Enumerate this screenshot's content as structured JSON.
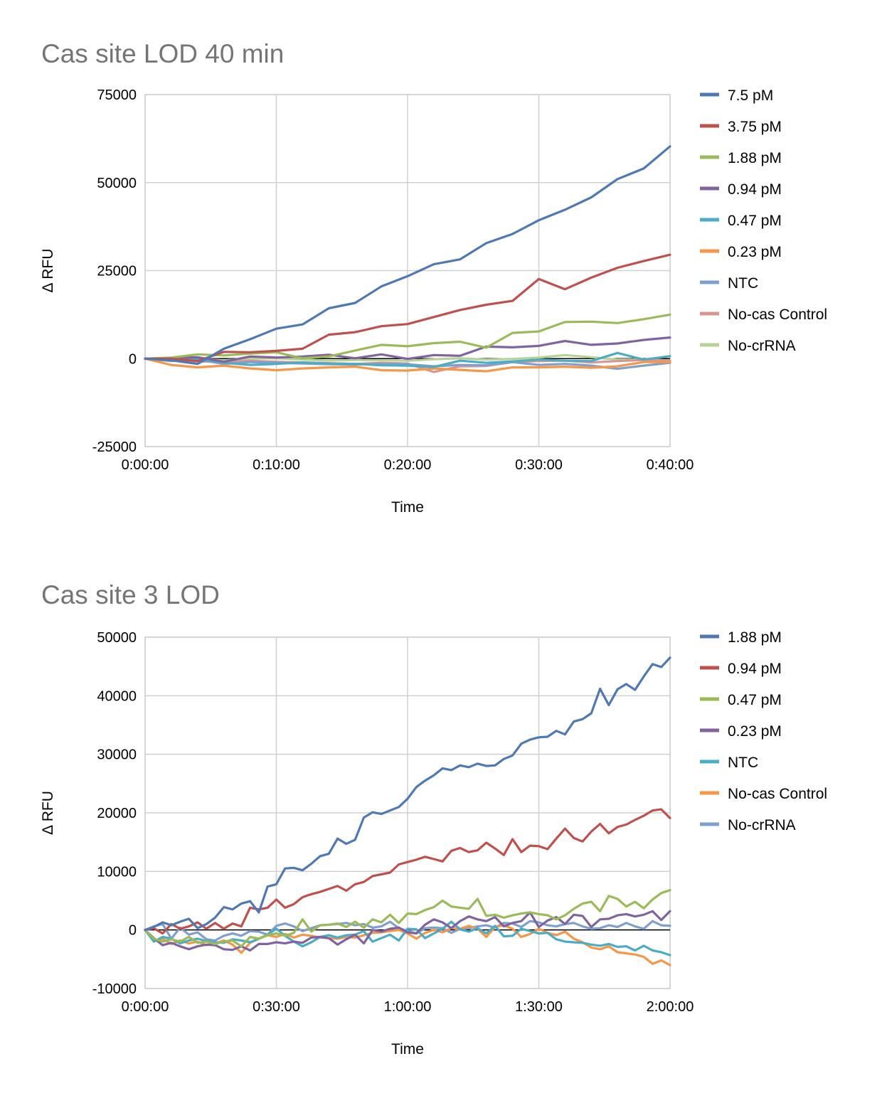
{
  "chart_data": [
    {
      "type": "line",
      "title": "Cas site  LOD 40 min",
      "xlabel": "Time",
      "ylabel": "Δ RFU",
      "x_unit": "minutes",
      "xlim": [
        0,
        40
      ],
      "ylim": [
        -25000,
        75000
      ],
      "y_ticks": [
        -25000,
        0,
        25000,
        50000,
        75000
      ],
      "x_tick_values": [
        0,
        10,
        20,
        30,
        40
      ],
      "x_tick_labels": [
        "0:00:00",
        "0:10:00",
        "0:20:00",
        "0:30:00",
        "0:40:00"
      ],
      "grid": true,
      "legend_position": "right",
      "x": [
        0,
        2,
        4,
        6,
        8,
        10,
        12,
        14,
        16,
        18,
        20,
        22,
        24,
        26,
        28,
        30,
        32,
        34,
        36,
        38,
        40
      ],
      "series": [
        {
          "name": "7.5 pM",
          "color": "#4e79b4",
          "values": [
            0,
            -500,
            -1500,
            2800,
            5500,
            8500,
            9700,
            14300,
            15800,
            20500,
            23400,
            26800,
            28200,
            32800,
            35400,
            39300,
            42300,
            45800,
            51000,
            54000,
            60300
          ]
        },
        {
          "name": "3.75 pM",
          "color": "#c0504d",
          "values": [
            0,
            0,
            -700,
            1900,
            1800,
            2200,
            2800,
            6800,
            7500,
            9200,
            9800,
            11800,
            13800,
            15300,
            16400,
            22600,
            19700,
            23000,
            25800,
            27700,
            29500
          ]
        },
        {
          "name": "1.88 pM",
          "color": "#9bbb59",
          "values": [
            0,
            300,
            1200,
            900,
            1400,
            1800,
            100,
            600,
            2300,
            3900,
            3500,
            4400,
            4800,
            3100,
            7300,
            7700,
            10400,
            10500,
            10100,
            11200,
            12500
          ]
        },
        {
          "name": "0.94 pM",
          "color": "#8064a2",
          "values": [
            0,
            200,
            400,
            -900,
            600,
            300,
            600,
            1100,
            100,
            1200,
            -100,
            1000,
            800,
            3400,
            3200,
            3600,
            5000,
            3900,
            4300,
            5300,
            6000
          ]
        },
        {
          "name": "0.47 pM",
          "color": "#4bacc6",
          "values": [
            0,
            -300,
            0,
            -1200,
            -1800,
            -1500,
            -1100,
            -1400,
            -1500,
            -1900,
            -2000,
            -2400,
            -600,
            -1200,
            -800,
            -300,
            -600,
            -700,
            1600,
            -300,
            700
          ]
        },
        {
          "name": "0.23 pM",
          "color": "#f79646",
          "values": [
            0,
            -1800,
            -2500,
            -2000,
            -2800,
            -3300,
            -2800,
            -2500,
            -2300,
            -3300,
            -3400,
            -2800,
            -3200,
            -3600,
            -2500,
            -2500,
            -2300,
            -2600,
            -2200,
            -1000,
            -1000
          ]
        },
        {
          "name": "NTC",
          "color": "#7f9fcf",
          "values": [
            0,
            -700,
            -300,
            -1500,
            -1000,
            -1200,
            -1400,
            -1600,
            -1700,
            -1500,
            -1600,
            -2200,
            -1800,
            -1900,
            -1000,
            -1800,
            -1500,
            -2000,
            -2900,
            -2000,
            -1200
          ]
        },
        {
          "name": "No-cas Control",
          "color": "#d99590",
          "values": [
            0,
            -500,
            -800,
            -1000,
            -600,
            -900,
            -1100,
            -1300,
            -1500,
            -1200,
            -1400,
            -3800,
            -2200,
            -2100,
            -1000,
            -700,
            -600,
            -1100,
            -700,
            -400,
            -600
          ]
        },
        {
          "name": "No-crRNA",
          "color": "#b8d295",
          "values": [
            0,
            0,
            -100,
            -500,
            0,
            100,
            -300,
            -600,
            -400,
            -500,
            -600,
            -200,
            100,
            -300,
            -100,
            300,
            1000,
            400,
            -300,
            -300,
            -500
          ]
        }
      ]
    },
    {
      "type": "line",
      "title": "Cas site 3 LOD",
      "xlabel": "Time",
      "ylabel": "Δ RFU",
      "x_unit": "minutes",
      "xlim": [
        0,
        120
      ],
      "ylim": [
        -10000,
        50000
      ],
      "y_ticks": [
        -10000,
        0,
        10000,
        20000,
        30000,
        40000,
        50000
      ],
      "x_tick_values": [
        0,
        30,
        60,
        90,
        120
      ],
      "x_tick_labels": [
        "0:00:00",
        "0:30:00",
        "1:00:00",
        "1:30:00",
        "2:00:00"
      ],
      "grid": true,
      "legend_position": "right",
      "x": [
        0,
        2,
        4,
        6,
        8,
        10,
        12,
        14,
        16,
        18,
        20,
        22,
        24,
        26,
        28,
        30,
        32,
        34,
        36,
        38,
        40,
        42,
        44,
        46,
        48,
        50,
        52,
        54,
        56,
        58,
        60,
        62,
        64,
        66,
        68,
        70,
        72,
        74,
        76,
        78,
        80,
        82,
        84,
        86,
        88,
        90,
        92,
        94,
        96,
        98,
        100,
        102,
        104,
        106,
        108,
        110,
        112,
        114,
        116,
        118,
        120
      ],
      "series": [
        {
          "name": "1.88 pM",
          "color": "#4e79b4",
          "values": [
            0,
            500,
            1300,
            800,
            1400,
            1900,
            300,
            1000,
            2100,
            3900,
            3500,
            4500,
            4900,
            3000,
            7400,
            7800,
            10500,
            10600,
            10200,
            11300,
            12600,
            13000,
            15600,
            14700,
            15400,
            19200,
            20100,
            19800,
            20400,
            21000,
            22400,
            24400,
            25500,
            26400,
            27600,
            27300,
            28100,
            27800,
            28400,
            28000,
            28100,
            29200,
            29800,
            31800,
            32500,
            32900,
            33000,
            34000,
            33400,
            35600,
            36000,
            37000,
            41200,
            38400,
            41100,
            42000,
            41000,
            43300,
            45400,
            44900,
            46500
          ]
        },
        {
          "name": "0.94 pM",
          "color": "#c0504d",
          "values": [
            0,
            300,
            -600,
            1000,
            200,
            600,
            1300,
            200,
            1200,
            200,
            1100,
            600,
            3800,
            3500,
            3800,
            5200,
            3800,
            4400,
            5600,
            6100,
            6500,
            7000,
            7500,
            6700,
            7800,
            8200,
            9200,
            9500,
            9800,
            11200,
            11600,
            12000,
            12500,
            12100,
            11700,
            13500,
            14000,
            13300,
            13600,
            14900,
            13900,
            12800,
            15500,
            13300,
            14400,
            14300,
            13800,
            15600,
            17300,
            15700,
            15100,
            16800,
            18100,
            16500,
            17600,
            18000,
            18800,
            19500,
            20400,
            20600,
            19100
          ]
        },
        {
          "name": "0.47 pM",
          "color": "#9bbb59",
          "values": [
            0,
            -1500,
            -2000,
            -1600,
            -2000,
            -1200,
            -2200,
            -2000,
            -2400,
            -2000,
            -1800,
            -2800,
            -1200,
            -1500,
            -900,
            -600,
            -1000,
            -500,
            1800,
            -300,
            800,
            900,
            1100,
            500,
            1400,
            400,
            1800,
            1300,
            2600,
            1200,
            2800,
            2700,
            3400,
            3900,
            5000,
            4000,
            3800,
            3600,
            5300,
            2400,
            2600,
            2100,
            2500,
            2800,
            3000,
            2700,
            2500,
            1800,
            2500,
            3600,
            4500,
            4800,
            3200,
            5800,
            5300,
            4000,
            4800,
            3700,
            5200,
            6300,
            6800
          ]
        },
        {
          "name": "0.23 pM",
          "color": "#8064a2",
          "values": [
            0,
            -1400,
            -2600,
            -2200,
            -2800,
            -3300,
            -2800,
            -2500,
            -2600,
            -3300,
            -3400,
            -2800,
            -3500,
            -2400,
            -2400,
            -2100,
            -2300,
            -2000,
            -2200,
            -1300,
            -1200,
            -1400,
            -2500,
            -1600,
            -800,
            -2300,
            0,
            -300,
            200,
            400,
            -400,
            -600,
            900,
            1800,
            1300,
            300,
            1500,
            2300,
            1800,
            1500,
            2200,
            600,
            1200,
            1500,
            3000,
            500,
            1600,
            2200,
            1000,
            2600,
            2400,
            500,
            1800,
            1900,
            2500,
            2700,
            2300,
            2600,
            3200,
            1700,
            3200
          ]
        },
        {
          "name": "NTC",
          "color": "#4bacc6",
          "values": [
            0,
            -2000,
            -1200,
            -1500,
            -2300,
            -1800,
            -1500,
            -1900,
            -2100,
            -2200,
            -1600,
            -1800,
            -2100,
            -1500,
            -800,
            200,
            -1000,
            -2000,
            -2800,
            -2100,
            -1200,
            -900,
            -1300,
            -900,
            -800,
            -200,
            -2000,
            -1400,
            -800,
            -1800,
            200,
            100,
            -1400,
            -600,
            200,
            1400,
            100,
            -300,
            300,
            -600,
            700,
            -1100,
            -1000,
            200,
            -200,
            -600,
            -500,
            -1600,
            -2000,
            -2100,
            -2200,
            -2500,
            -2700,
            -2400,
            -2900,
            -2800,
            -3500,
            -2700,
            -3500,
            -3800,
            -4300
          ]
        },
        {
          "name": "No-cas Control",
          "color": "#f79646",
          "values": [
            0,
            -1800,
            -1500,
            -2400,
            -1800,
            -2300,
            -2000,
            -2600,
            -2300,
            -1800,
            -2500,
            -3900,
            -2200,
            -1500,
            -900,
            -1200,
            -700,
            -1300,
            -800,
            -1000,
            -1300,
            -1400,
            -1500,
            -1200,
            -1300,
            -900,
            -500,
            -400,
            -200,
            0,
            -600,
            -1500,
            -500,
            0,
            -400,
            300,
            200,
            700,
            200,
            -1200,
            500,
            800,
            200,
            -1200,
            -700,
            200,
            -500,
            -900,
            -300,
            -1500,
            -2100,
            -3000,
            -3300,
            -2800,
            -3800,
            -4000,
            -4200,
            -4600,
            -5800,
            -5200,
            -6000
          ]
        },
        {
          "name": "No-crRNA",
          "color": "#7f9fcf",
          "values": [
            0,
            600,
            1000,
            -1500,
            400,
            -800,
            -400,
            -1600,
            -1800,
            -1000,
            -600,
            -1000,
            -200,
            -300,
            -800,
            700,
            1100,
            600,
            -200,
            300,
            800,
            900,
            1000,
            1200,
            800,
            1000,
            400,
            600,
            1400,
            300,
            -200,
            -600,
            300,
            400,
            300,
            -500,
            200,
            300,
            600,
            800,
            400,
            1200,
            1100,
            500,
            1500,
            1300,
            800,
            600,
            1000,
            1200,
            600,
            200,
            300,
            800,
            500,
            1200,
            600,
            200,
            1500,
            800,
            700
          ]
        }
      ]
    }
  ]
}
